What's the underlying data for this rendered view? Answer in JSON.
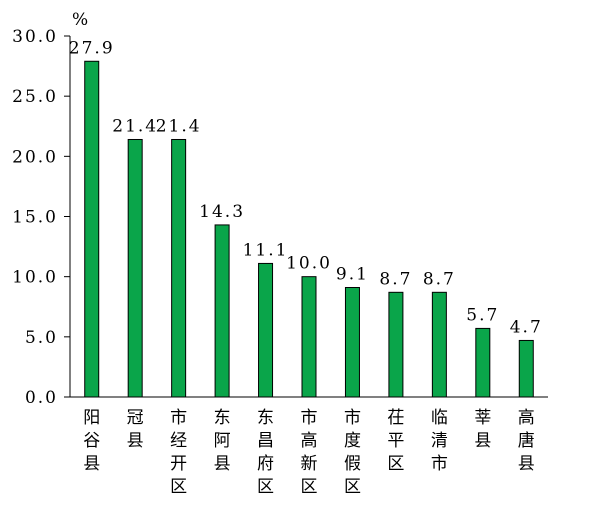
{
  "chart_data": {
    "type": "bar",
    "unit": "%",
    "categories": [
      "阳谷县",
      "冠县",
      "市经开区",
      "东阿县",
      "东昌府区",
      "市高新区",
      "市度假区",
      "茌平区",
      "临清市",
      "莘县",
      "高唐县"
    ],
    "values": [
      27.9,
      21.4,
      21.4,
      14.3,
      11.1,
      10.0,
      9.1,
      8.7,
      8.7,
      5.7,
      4.7
    ],
    "value_labels": [
      "27.9",
      "21.4",
      "21.4",
      "14.3",
      "11.1",
      "10.0",
      "9.1",
      "8.7",
      "8.7",
      "5.7",
      "4.7"
    ],
    "yticks": [
      "0.0",
      "5.0",
      "10.0",
      "15.0",
      "20.0",
      "25.0",
      "30.0"
    ],
    "ylim": [
      0,
      30
    ],
    "grid": false,
    "colors": {
      "bar": "#0aa54a"
    }
  }
}
